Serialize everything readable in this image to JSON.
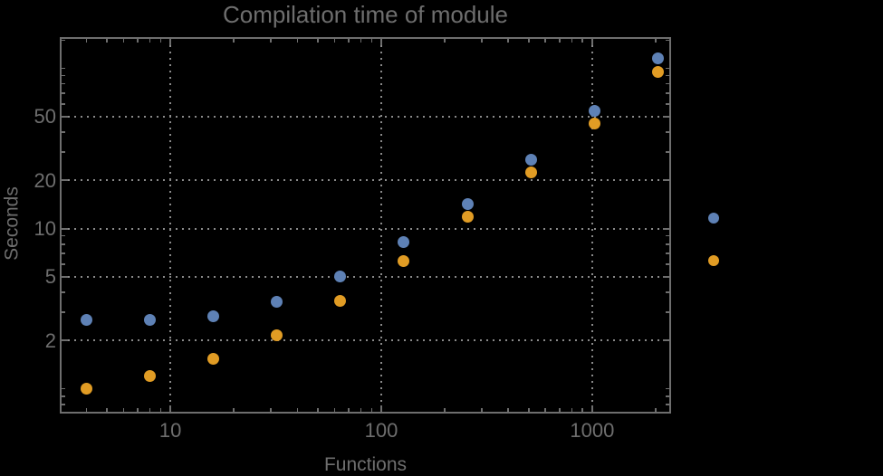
{
  "chart": {
    "title": "Compilation time of module",
    "colors": {
      "background": "#000000",
      "frame": "#6e6e6e",
      "grid": "#8a8a8a",
      "text": "#6e6e6e",
      "series_blue": "#5E81B5",
      "series_orange": "#E19C24"
    }
  },
  "chart_data": {
    "type": "scatter",
    "title": "Compilation time of module",
    "xlabel": "Functions",
    "ylabel": "Seconds",
    "xscale": "log",
    "yscale": "log",
    "xlim": [
      3.05,
      2320
    ],
    "ylim": [
      0.72,
      152.5
    ],
    "x": [
      4,
      8,
      16,
      32,
      64,
      128,
      256,
      512,
      1024,
      2048
    ],
    "series": [
      {
        "name": "series-1-blue",
        "color": "#5E81B5",
        "values": [
          2.7,
          2.7,
          2.85,
          3.5,
          5.0,
          8.2,
          14.3,
          27,
          54,
          115
        ]
      },
      {
        "name": "series-2-orange",
        "color": "#E19C24",
        "values": [
          1.0,
          1.2,
          1.55,
          2.15,
          3.55,
          6.3,
          11.8,
          22.5,
          45.5,
          95
        ]
      }
    ],
    "x_ticks": [
      {
        "value": 10,
        "label": "10"
      },
      {
        "value": 100,
        "label": "100"
      },
      {
        "value": 1000,
        "label": "1000"
      }
    ],
    "y_ticks": [
      {
        "value": 50,
        "label": "50"
      },
      {
        "value": 20,
        "label": "20"
      },
      {
        "value": 10,
        "label": "10"
      },
      {
        "value": 5,
        "label": "5"
      },
      {
        "value": 2,
        "label": "2"
      }
    ],
    "x_minor_ticks": [
      4,
      5,
      6,
      7,
      8,
      9,
      20,
      30,
      40,
      50,
      60,
      70,
      80,
      90,
      200,
      300,
      400,
      500,
      600,
      700,
      800,
      900,
      2000
    ],
    "y_minor_ticks": [
      0.8,
      0.9,
      1,
      3,
      4,
      6,
      7,
      8,
      9,
      30,
      40,
      60,
      70,
      80,
      90,
      100,
      150
    ],
    "grid": "dotted lines at labeled major ticks, both axes",
    "legend": {
      "position": "right-of-plot",
      "labels_visible": false,
      "markers": [
        {
          "series": "series-1-blue",
          "color": "#5E81B5"
        },
        {
          "series": "series-2-orange",
          "color": "#E19C24"
        }
      ]
    }
  }
}
